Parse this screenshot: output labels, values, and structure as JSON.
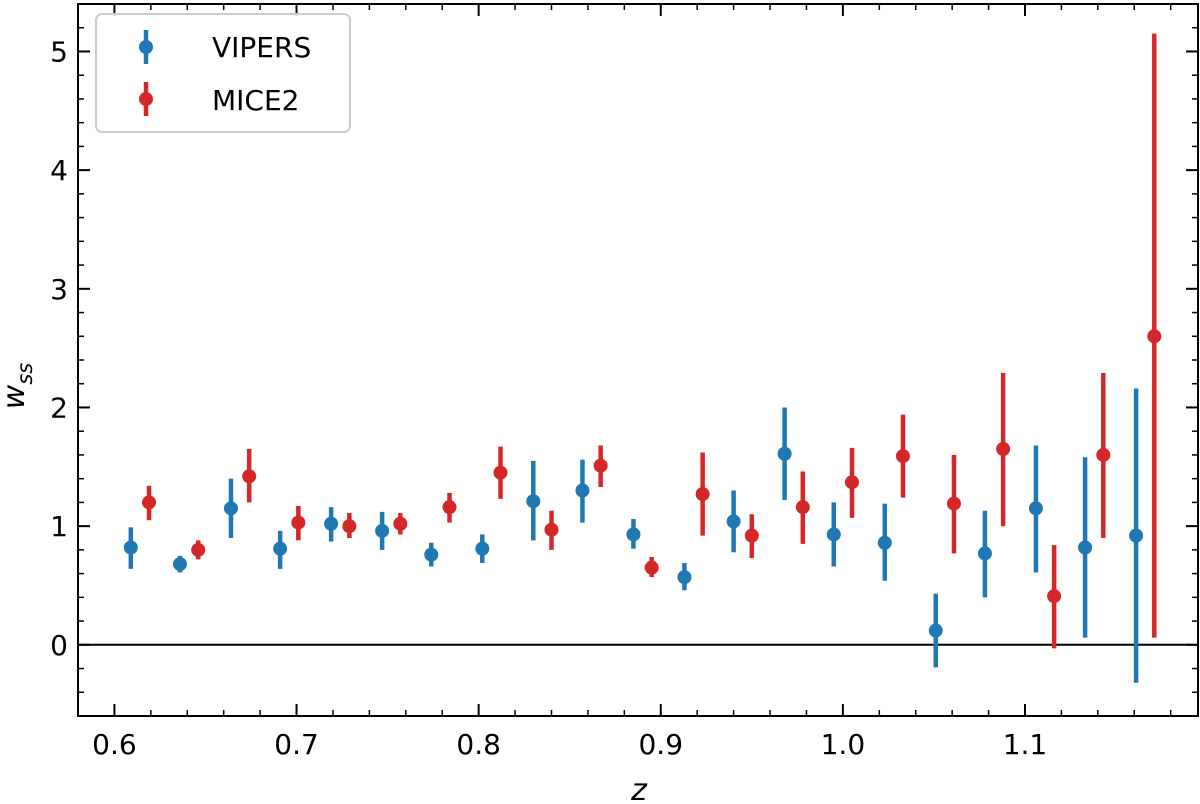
{
  "chart_data": {
    "type": "scatter",
    "title": "",
    "xlabel": "z",
    "ylabel": "w",
    "ylabel_sub": "ss",
    "xlim": [
      0.58,
      1.195
    ],
    "ylim": [
      -0.6,
      5.4
    ],
    "xticks": [
      0.6,
      0.7,
      0.8,
      0.9,
      1.0,
      1.1
    ],
    "xtick_labels": [
      "0.6",
      "0.7",
      "0.8",
      "0.9",
      "1.0",
      "1.1"
    ],
    "yticks": [
      0,
      1,
      2,
      3,
      4,
      5
    ],
    "ytick_labels": [
      "0",
      "1",
      "2",
      "3",
      "4",
      "5"
    ],
    "hline": 0,
    "grid": false,
    "legend_position": "top-left",
    "series": [
      {
        "name": "VIPERS",
        "color": "#1f77b4",
        "x": [
          0.609,
          0.636,
          0.664,
          0.691,
          0.719,
          0.747,
          0.774,
          0.802,
          0.83,
          0.857,
          0.885,
          0.913,
          0.94,
          0.968,
          0.995,
          1.023,
          1.051,
          1.078,
          1.106,
          1.133,
          1.161
        ],
        "y": [
          0.82,
          0.68,
          1.15,
          0.81,
          1.02,
          0.96,
          0.76,
          0.81,
          1.21,
          1.3,
          0.93,
          0.57,
          1.04,
          1.61,
          0.93,
          0.86,
          0.12,
          0.77,
          1.15,
          0.82,
          0.92
        ],
        "yerr_low": [
          0.64,
          0.61,
          0.9,
          0.64,
          0.87,
          0.8,
          0.66,
          0.69,
          0.88,
          1.03,
          0.81,
          0.46,
          0.78,
          1.22,
          0.66,
          0.54,
          -0.19,
          0.4,
          0.61,
          0.06,
          -0.32
        ],
        "yerr_high": [
          0.99,
          0.75,
          1.4,
          0.96,
          1.16,
          1.12,
          0.86,
          0.93,
          1.55,
          1.56,
          1.06,
          0.69,
          1.3,
          2.0,
          1.2,
          1.19,
          0.43,
          1.13,
          1.68,
          1.58,
          2.16
        ]
      },
      {
        "name": "MICE2",
        "color": "#d62728",
        "x": [
          0.619,
          0.646,
          0.674,
          0.701,
          0.729,
          0.757,
          0.784,
          0.812,
          0.84,
          0.867,
          0.895,
          0.923,
          0.95,
          0.978,
          1.005,
          1.033,
          1.061,
          1.088,
          1.116,
          1.143,
          1.171
        ],
        "y": [
          1.2,
          0.8,
          1.42,
          1.03,
          1.0,
          1.02,
          1.16,
          1.45,
          0.97,
          1.51,
          0.65,
          1.27,
          0.92,
          1.16,
          1.37,
          1.59,
          1.19,
          1.65,
          0.41,
          1.6,
          2.6
        ],
        "yerr_low": [
          1.05,
          0.72,
          1.2,
          0.88,
          0.9,
          0.93,
          1.03,
          1.23,
          0.8,
          1.33,
          0.57,
          0.92,
          0.73,
          0.85,
          1.07,
          1.24,
          0.77,
          1.0,
          -0.03,
          0.9,
          0.06
        ],
        "yerr_high": [
          1.34,
          0.88,
          1.65,
          1.17,
          1.11,
          1.11,
          1.28,
          1.67,
          1.13,
          1.68,
          0.74,
          1.62,
          1.1,
          1.46,
          1.66,
          1.94,
          1.6,
          2.29,
          0.84,
          2.29,
          5.15
        ]
      }
    ]
  }
}
